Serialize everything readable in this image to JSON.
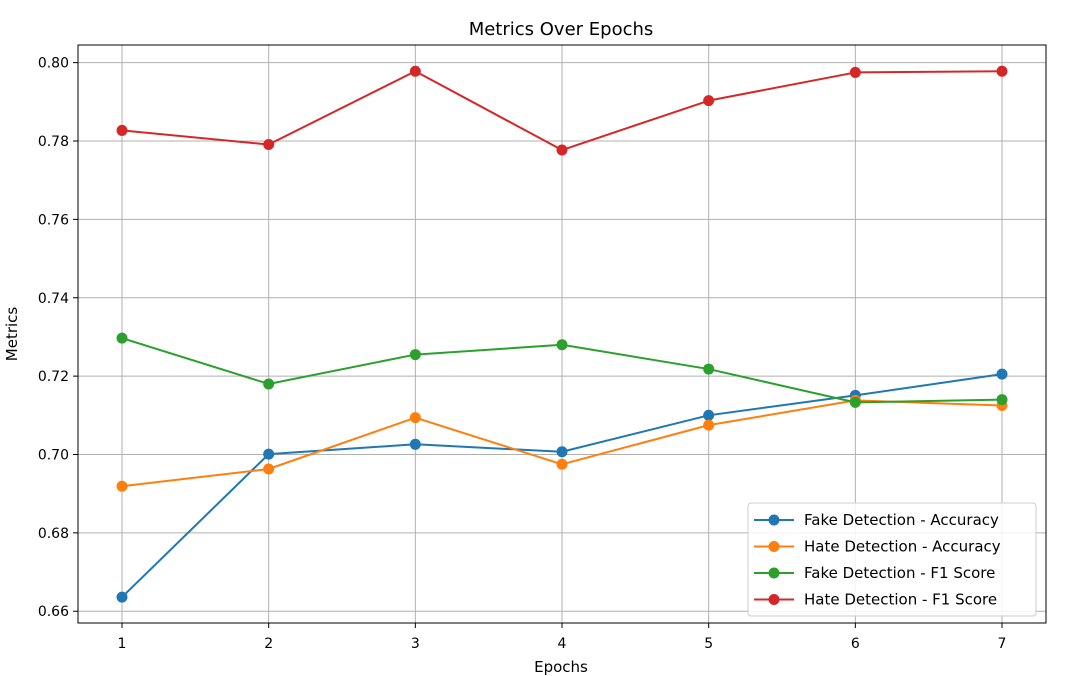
{
  "chart_data": {
    "type": "line",
    "title": "Metrics Over Epochs",
    "xlabel": "Epochs",
    "ylabel": "Metrics",
    "x": [
      1,
      2,
      3,
      4,
      5,
      6,
      7
    ],
    "xticks": [
      "1",
      "2",
      "3",
      "4",
      "5",
      "6",
      "7"
    ],
    "yticks": [
      "0.66",
      "0.68",
      "0.70",
      "0.72",
      "0.74",
      "0.76",
      "0.78",
      "0.80"
    ],
    "xlim": [
      0.7,
      7.3
    ],
    "ylim": [
      0.657,
      0.8045
    ],
    "grid": true,
    "legend_position": "lower-right",
    "series": [
      {
        "name": "Fake Detection - Accuracy",
        "color": "#1f77b4",
        "values": [
          0.6636,
          0.7001,
          0.7026,
          0.7007,
          0.71,
          0.7151,
          0.7205
        ]
      },
      {
        "name": "Hate Detection - Accuracy",
        "color": "#ff7f0e",
        "values": [
          0.6919,
          0.6963,
          0.7094,
          0.6975,
          0.7075,
          0.7138,
          0.7125
        ]
      },
      {
        "name": "Fake Detection - F1 Score",
        "color": "#2ca02c",
        "values": [
          0.7297,
          0.718,
          0.7255,
          0.728,
          0.7218,
          0.7133,
          0.714
        ]
      },
      {
        "name": "Hate Detection - F1 Score",
        "color": "#d62728",
        "values": [
          0.7827,
          0.7791,
          0.7978,
          0.7777,
          0.7903,
          0.7975,
          0.7978
        ]
      }
    ]
  }
}
